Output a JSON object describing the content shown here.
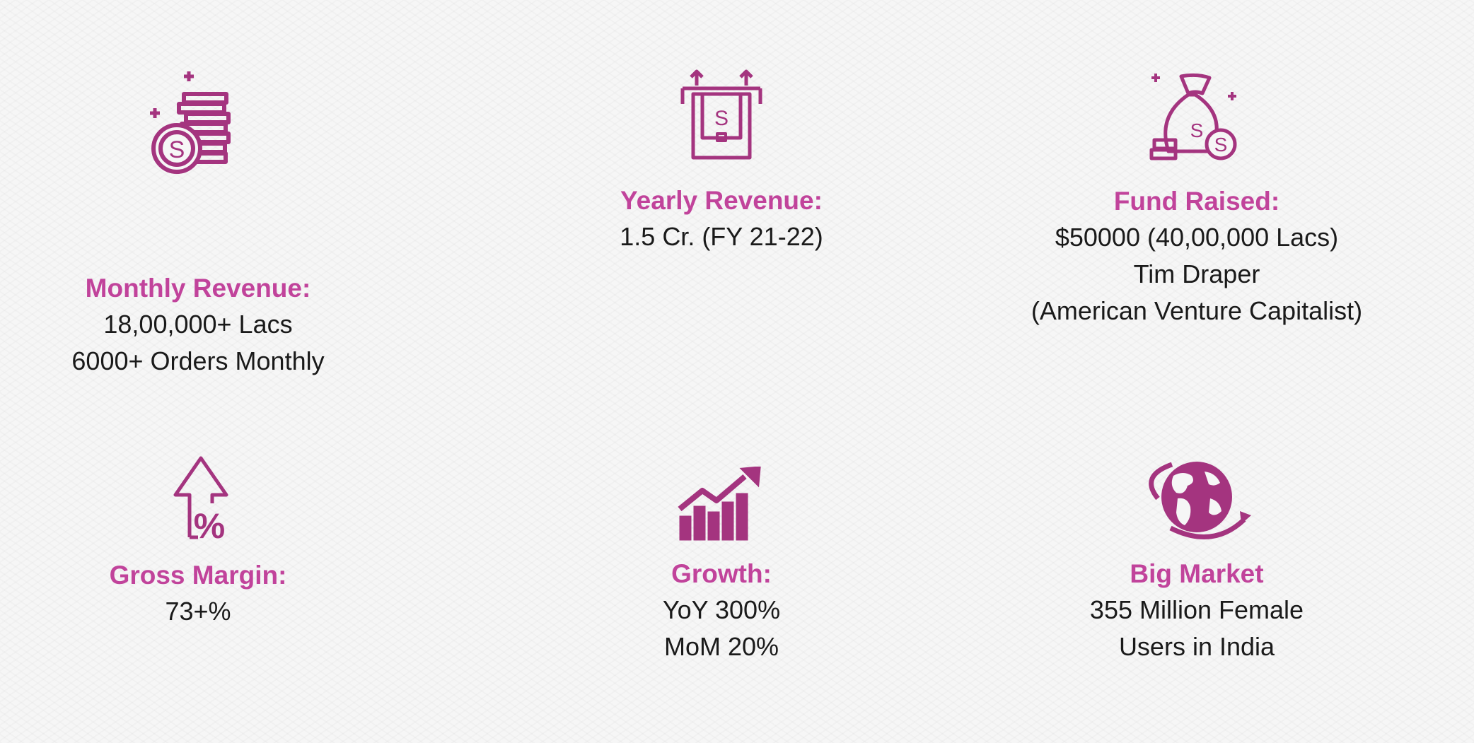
{
  "accent_color": "#a4347f",
  "label_color": "#c1439b",
  "stats": [
    {
      "icon": "coin-stack-icon",
      "label": "Monthly Revenue:",
      "lines": [
        "18,00,000+ Lacs",
        "6000+ Orders Monthly"
      ]
    },
    {
      "icon": "cash-withdraw-icon",
      "label": "Yearly Revenue:",
      "lines": [
        "1.5 Cr. (FY 21-22)"
      ]
    },
    {
      "icon": "money-bag-icon",
      "label": "Fund Raised:",
      "lines": [
        "$50000 (40,00,000 Lacs)",
        "Tim Draper",
        "(American Venture Capitalist)"
      ]
    },
    {
      "icon": "percent-arrow-up-icon",
      "label": "Gross Margin:",
      "lines": [
        "73+%"
      ]
    },
    {
      "icon": "growth-chart-icon",
      "label": "Growth:",
      "lines": [
        "YoY 300%",
        "MoM 20%"
      ]
    },
    {
      "icon": "globe-icon",
      "label": "Big Market",
      "lines": [
        "355 Million Female",
        "Users in India"
      ]
    }
  ]
}
